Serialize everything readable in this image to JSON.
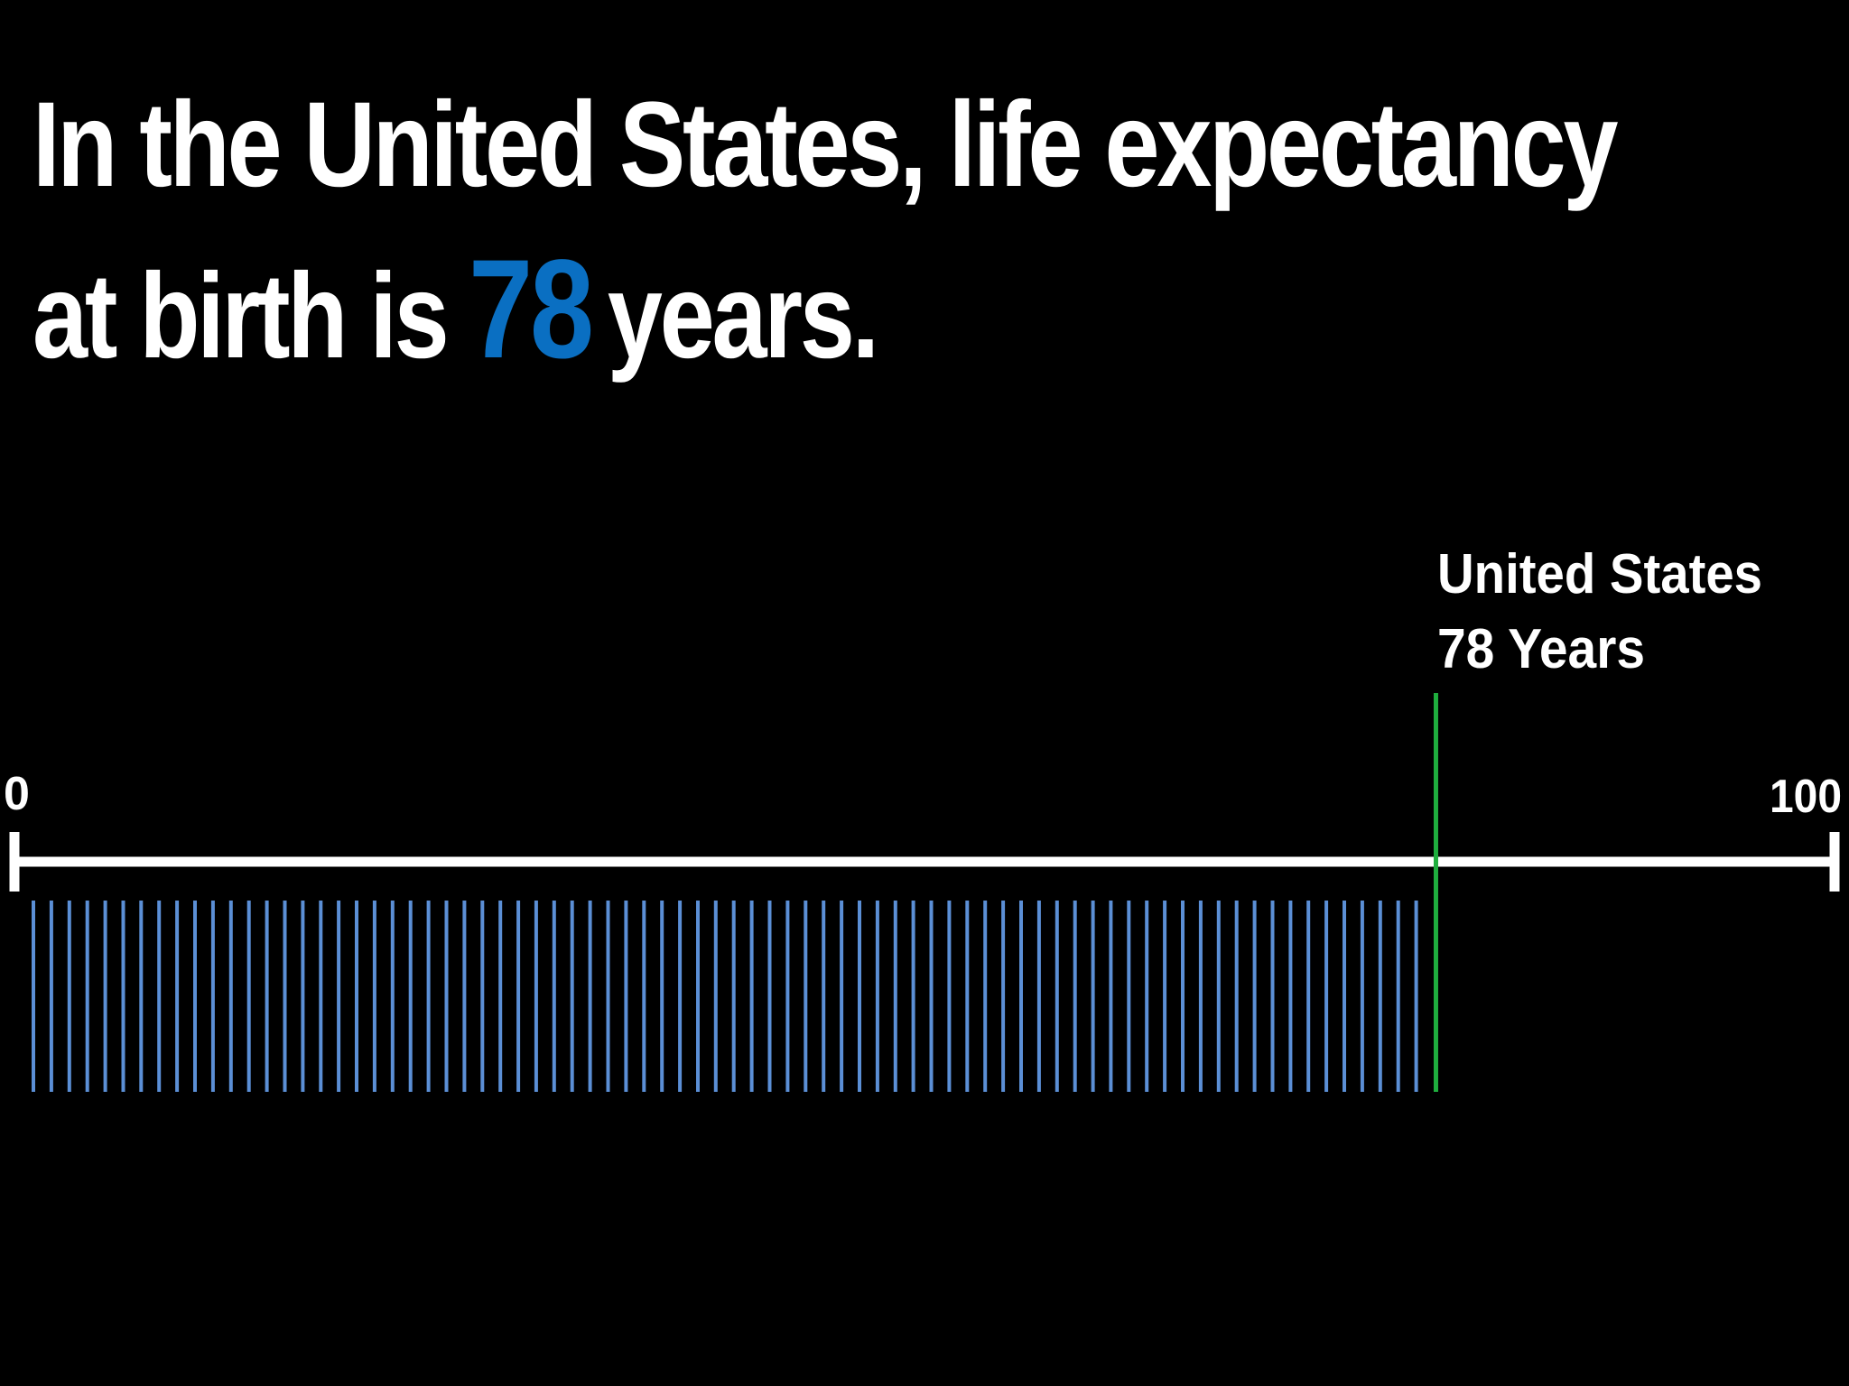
{
  "headline": {
    "line1": "In the United States, life expectancy",
    "line2_prefix": "at birth is",
    "highlight_value": "78",
    "line2_suffix": "years."
  },
  "colors": {
    "background": "#000000",
    "text": "#ffffff",
    "highlight": "#0a6fc2",
    "year_ticks": "#5b8fd6",
    "marker": "#1fae3e",
    "axis": "#ffffff"
  },
  "chart_data": {
    "type": "bar",
    "title": "",
    "xlabel": "",
    "ylabel": "",
    "xlim": [
      0,
      100
    ],
    "axis_min_label": "0",
    "axis_max_label": "100",
    "year_marks": 78,
    "marker": {
      "value": 78,
      "label_line1": "United States",
      "label_line2": "78 Years"
    },
    "grid": false,
    "legend": "none"
  }
}
